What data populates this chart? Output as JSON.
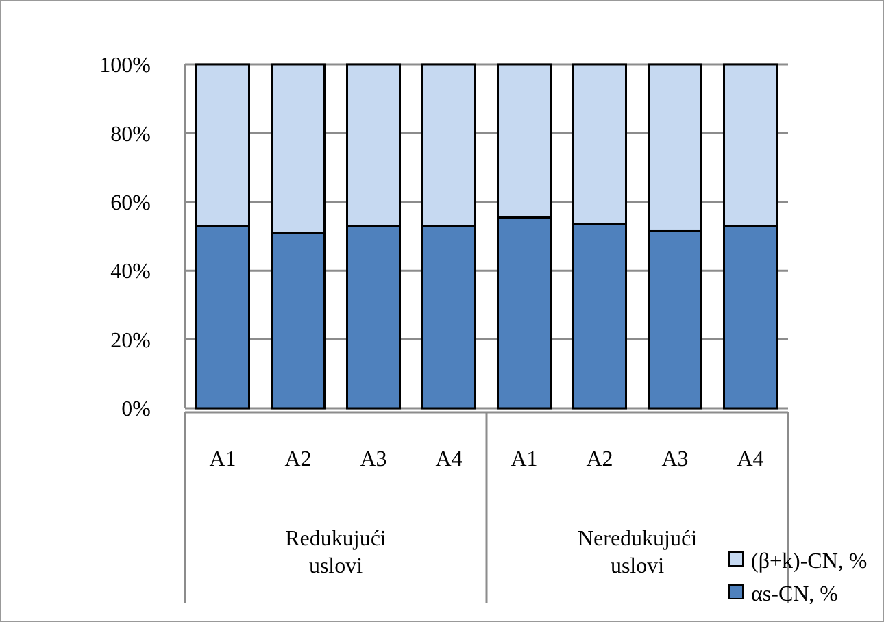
{
  "chart_data": {
    "type": "bar",
    "stacked": true,
    "categories": [
      "A1",
      "A2",
      "A3",
      "A4",
      "A1",
      "A2",
      "A3",
      "A4"
    ],
    "series": [
      {
        "name": "αs-CN, %",
        "color": "#4f81bd",
        "values": [
          53,
          51,
          53,
          53,
          55.5,
          53.5,
          51.5,
          53
        ]
      },
      {
        "name": "(β+k)-CN, %",
        "color": "#c6d9f1",
        "values": [
          47,
          49,
          47,
          47,
          44.5,
          46.5,
          48.5,
          47
        ]
      }
    ],
    "ylim": [
      0,
      100
    ],
    "yticks": [
      {
        "value": 0,
        "label": "0%"
      },
      {
        "value": 20,
        "label": "20%"
      },
      {
        "value": 40,
        "label": "40%"
      },
      {
        "value": 60,
        "label": "60%"
      },
      {
        "value": 80,
        "label": "80%"
      },
      {
        "value": 100,
        "label": "100%"
      }
    ],
    "grid": "y",
    "legend": "bottom right",
    "annotations": [
      "Redukujući uslovi",
      "Neredukujući uslovi"
    ]
  }
}
